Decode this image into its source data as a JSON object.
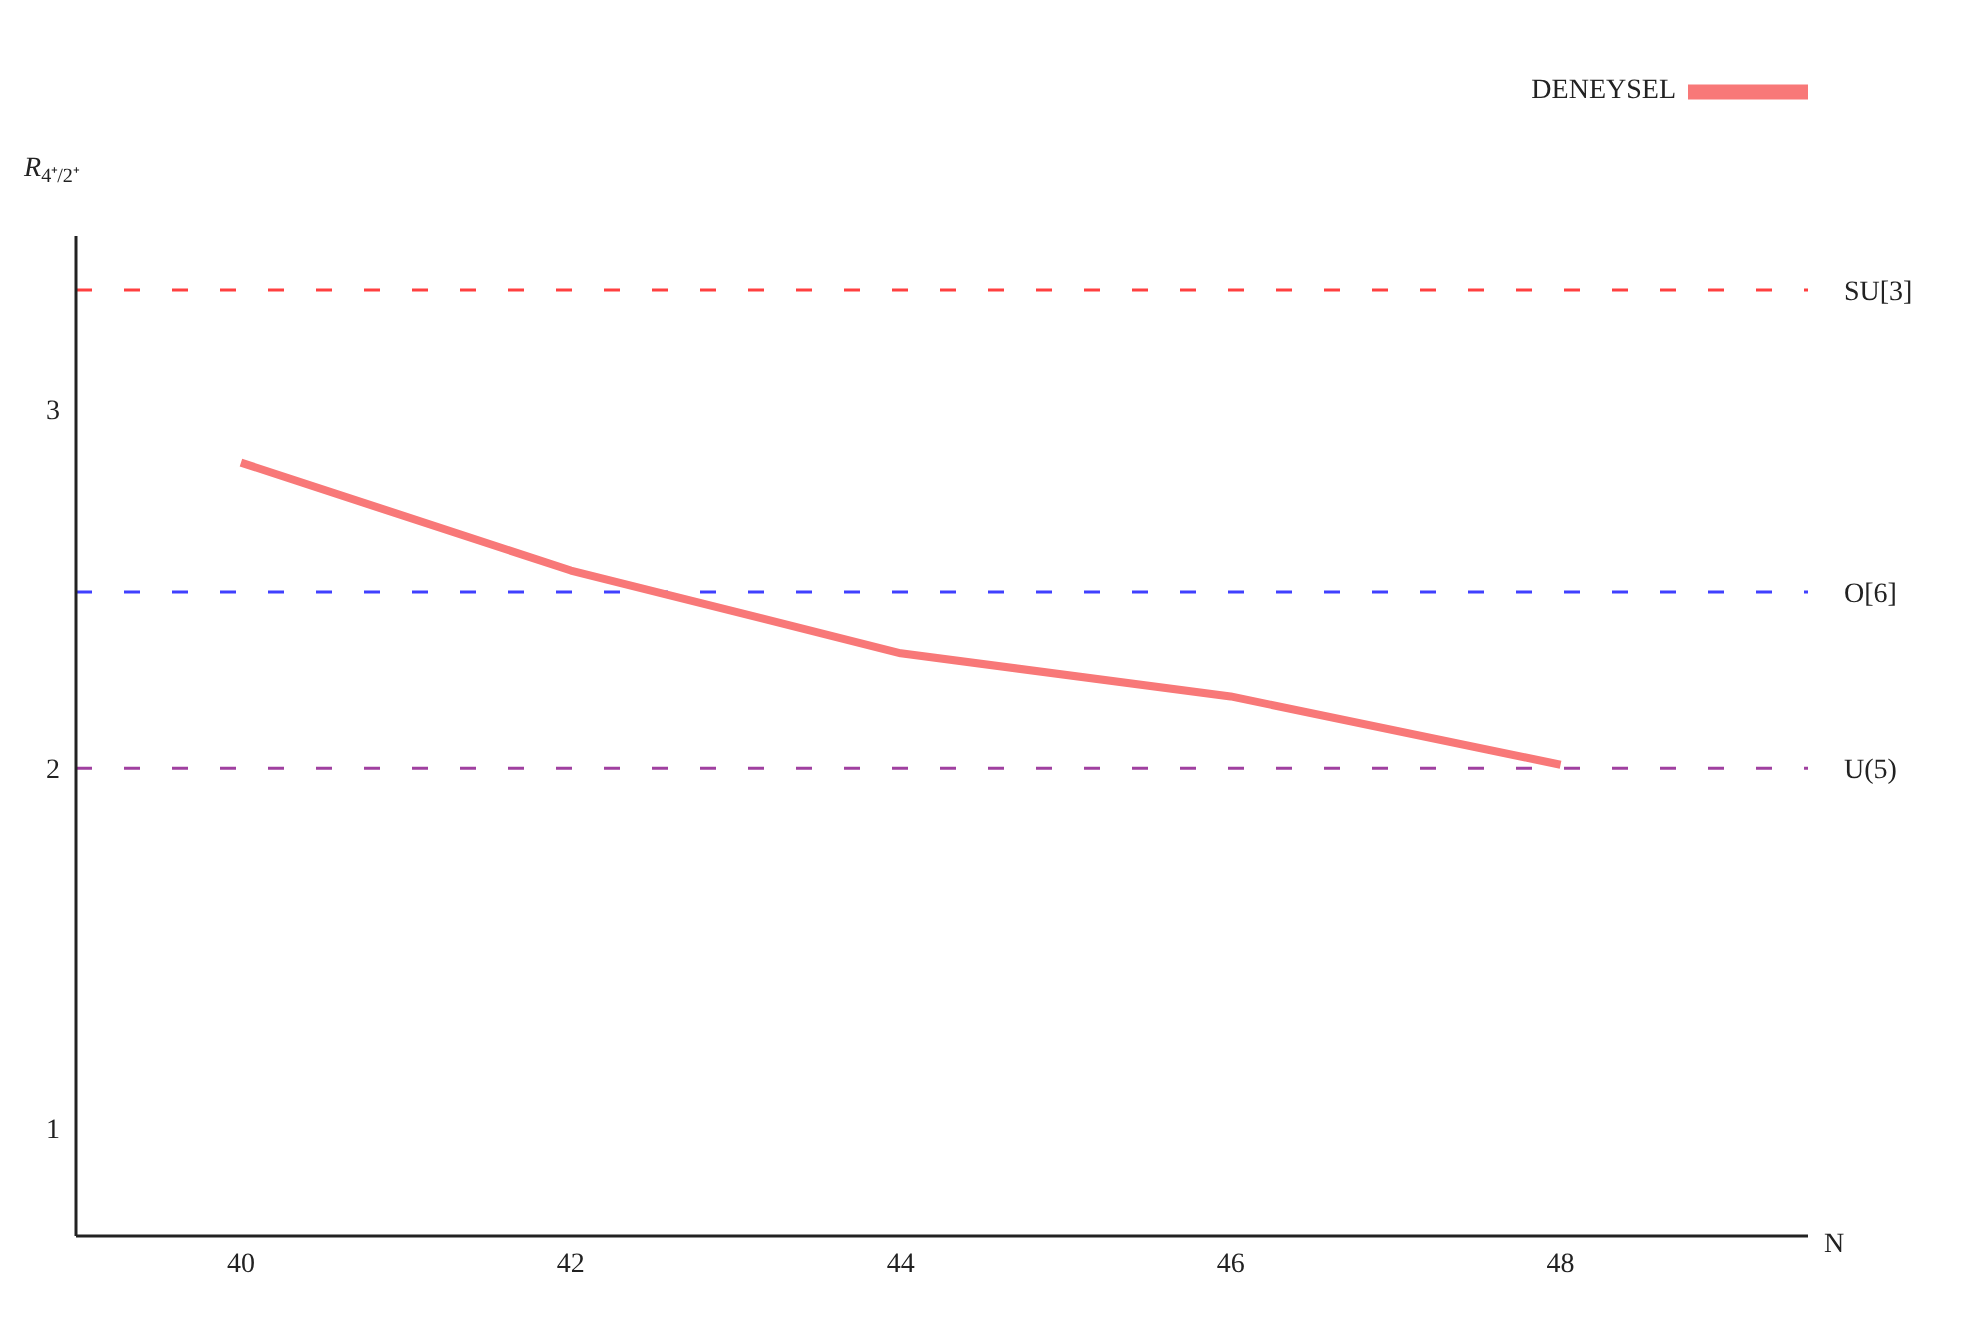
{
  "chart_data": {
    "type": "line",
    "xlabel": "N",
    "ylabel": "R$_{4⁺/2⁺}$",
    "x": [
      40,
      42,
      44,
      46,
      48
    ],
    "series": [
      {
        "name": "DENEYSEL",
        "color": "#f87878",
        "values": [
          2.85,
          2.55,
          2.32,
          2.2,
          2.01
        ]
      }
    ],
    "xlim": [
      39,
      49.5
    ],
    "xticks": [
      40,
      42,
      44,
      46,
      48
    ],
    "ylim": [
      0.7,
      3.48
    ],
    "yticks": [
      1,
      2,
      3
    ],
    "ref_lines": [
      {
        "axis": "y",
        "value": 3.33,
        "label": "SU[3]",
        "color": "#ff4040",
        "line_style": "dashed"
      },
      {
        "axis": "y",
        "value": 2.49,
        "label": "O[6]",
        "color": "#4040ff",
        "line_style": "dashed"
      },
      {
        "axis": "y",
        "value": 2.0,
        "label": "U(5)",
        "color": "#a040a0",
        "line_style": "dashed"
      }
    ],
    "grid": false,
    "legend": "top right",
    "marker": "none",
    "line_style": "solid"
  }
}
